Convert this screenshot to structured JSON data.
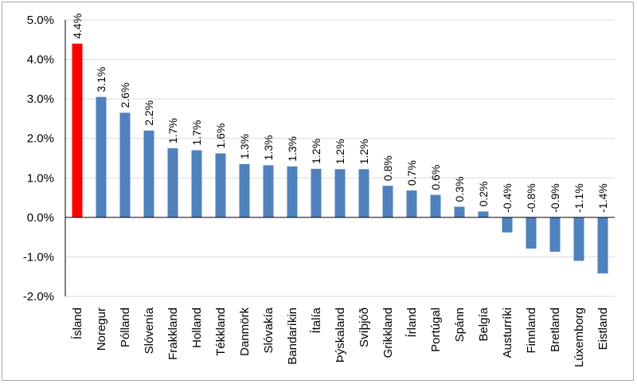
{
  "chart_data": {
    "type": "bar",
    "title": "",
    "xlabel": "",
    "ylabel": "",
    "ylim": [
      -2.0,
      5.0
    ],
    "yticks": [
      "5.0%",
      "4.0%",
      "3.0%",
      "2.0%",
      "1.0%",
      "0.0%",
      "-1.0%",
      "-2.0%"
    ],
    "ytick_values": [
      5.0,
      4.0,
      3.0,
      2.0,
      1.0,
      0.0,
      -1.0,
      -2.0
    ],
    "grid": true,
    "categories": [
      "Ísland",
      "Noregur",
      "Pólland",
      "Slóvenía",
      "Frakkland",
      "Holland",
      "Tékkland",
      "Danmörk",
      "Slóvakía",
      "Bandaríkin",
      "Ítalía",
      "Þýskaland",
      "Svíþjóð",
      "Grikkland",
      "Írland",
      "Portúgal",
      "Spánn",
      "Belgía",
      "Austurríki",
      "Finnland",
      "Bretland",
      "Lúxemborg",
      "Eistland"
    ],
    "values": [
      4.4,
      3.05,
      2.65,
      2.2,
      1.75,
      1.7,
      1.62,
      1.35,
      1.32,
      1.29,
      1.23,
      1.22,
      1.22,
      0.8,
      0.68,
      0.57,
      0.27,
      0.15,
      -0.38,
      -0.79,
      -0.87,
      -1.1,
      -1.42
    ],
    "labels": [
      "4.4%",
      "3.1%",
      "2.6%",
      "2.2%",
      "1.7%",
      "1.7%",
      "1.6%",
      "1.3%",
      "1.3%",
      "1.3%",
      "1.2%",
      "1.2%",
      "1.2%",
      "0.8%",
      "0.7%",
      "0.6%",
      "0.3%",
      "0.2%",
      "-0.4%",
      "-0.8%",
      "-0.9%",
      "-1.1%",
      "-1.4%"
    ],
    "colors": {
      "default": "#4f81bd",
      "highlight": "#ff0000",
      "highlight_category": "Ísland",
      "grid": "#d9d9d9",
      "axis": "#000000"
    }
  }
}
